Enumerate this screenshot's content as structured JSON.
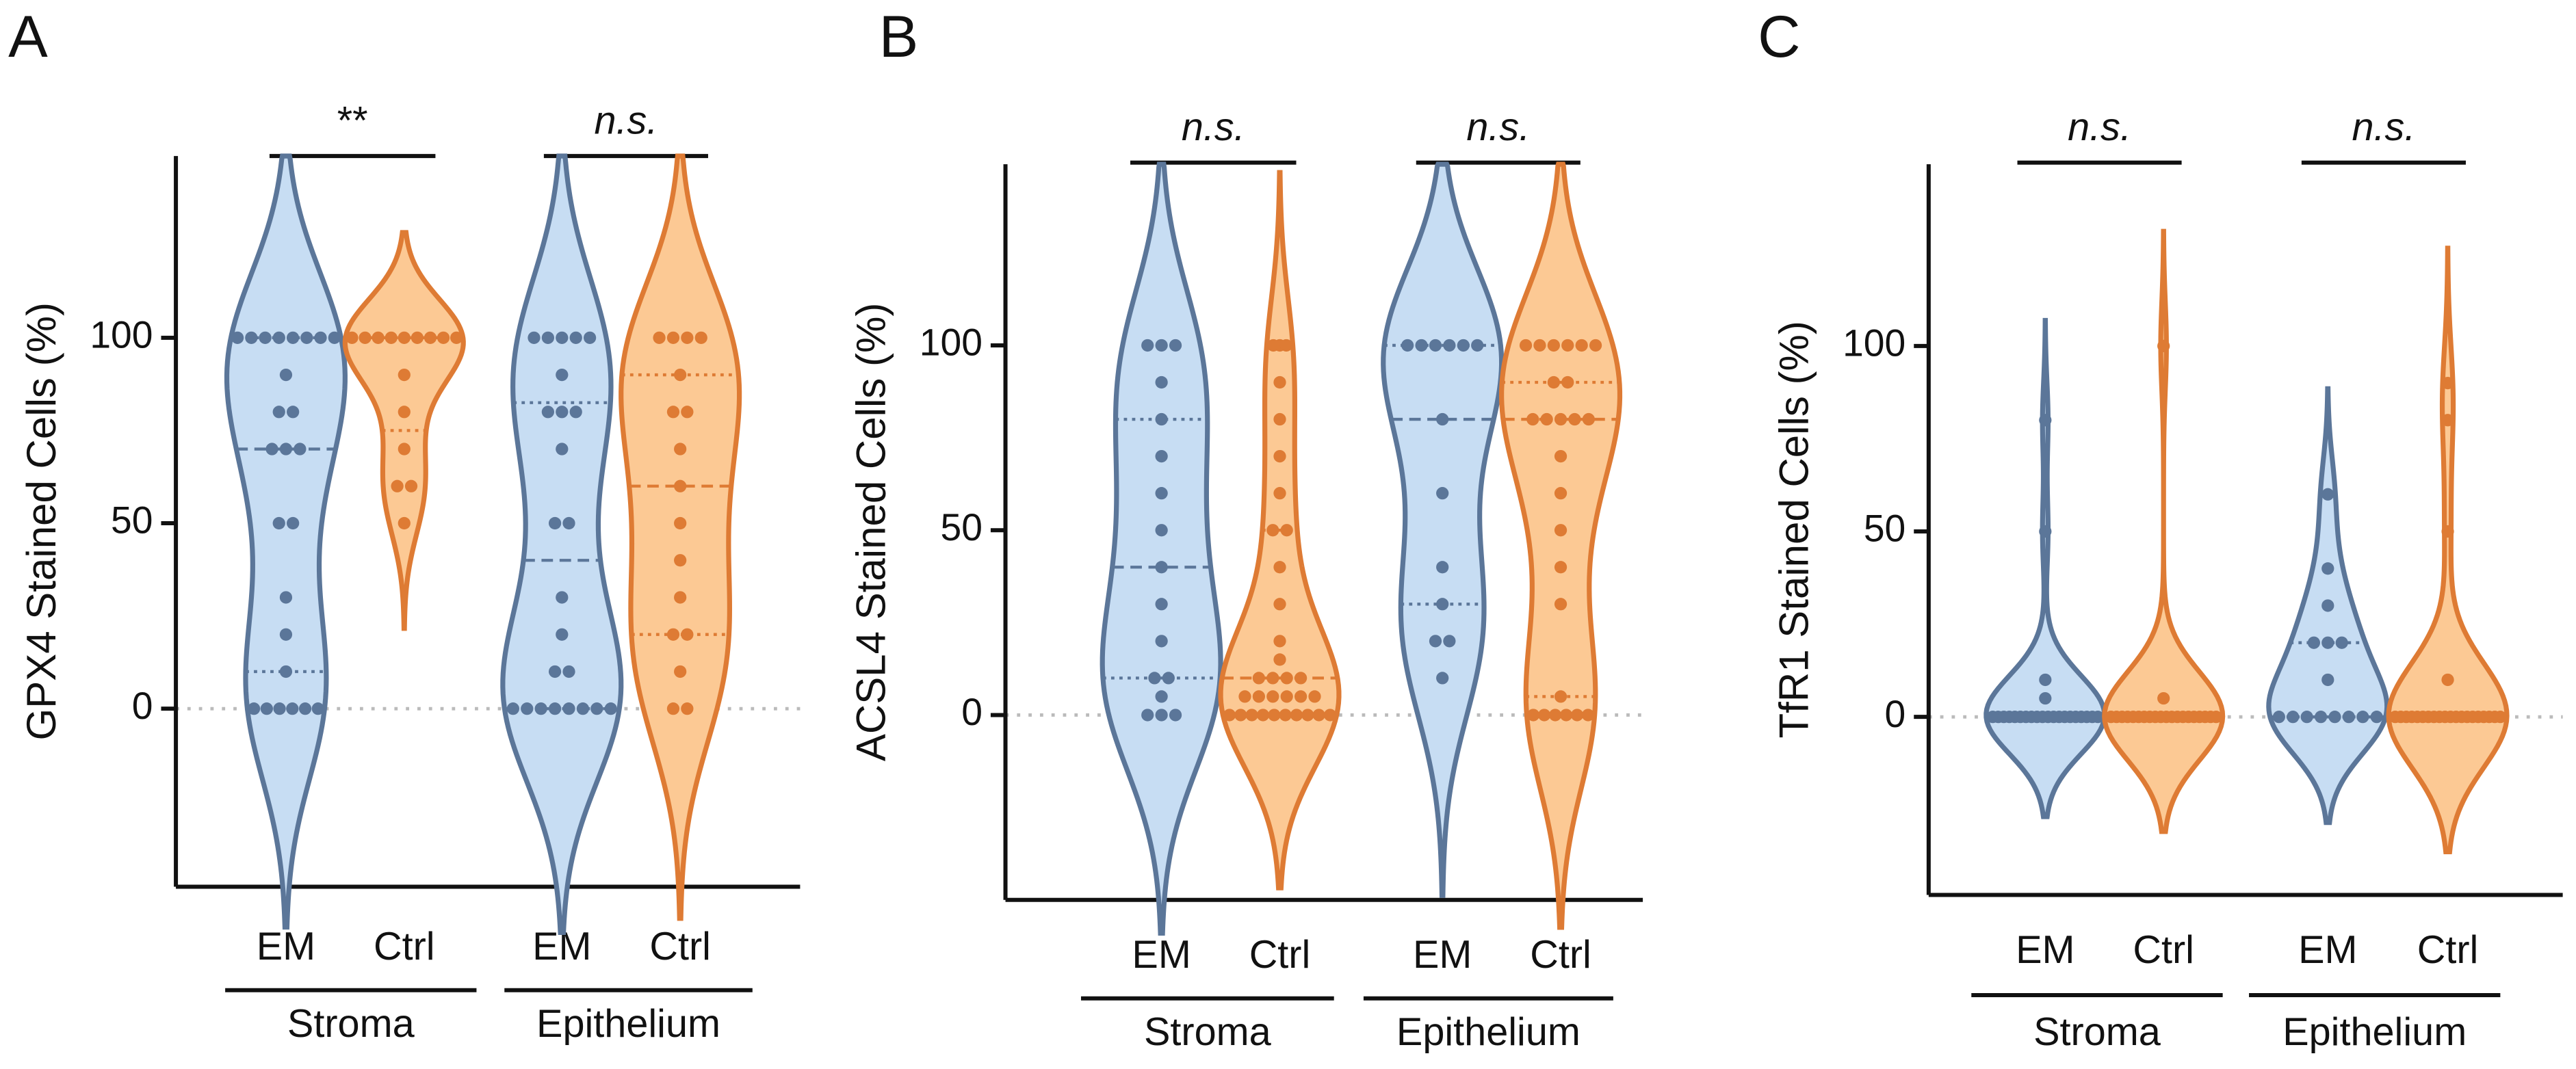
{
  "chart_data": [
    {
      "type": "violin",
      "label": "A",
      "ylabel": "GPX4 Stained Cells (%)",
      "ylim": [
        -48,
        149
      ],
      "yticks": [
        0,
        50,
        100
      ],
      "reference_line": 0,
      "categories": [
        "EM",
        "Ctrl",
        "EM",
        "Ctrl"
      ],
      "groups": [
        "Stroma",
        "Epithelium"
      ],
      "annotations": [
        "**",
        "n.s."
      ],
      "series": [
        {
          "color": "#5b7699",
          "fill": "#c7ddf3",
          "values": [
            0,
            0,
            0,
            0,
            0,
            0,
            10,
            20,
            30,
            50,
            50,
            70,
            70,
            70,
            80,
            80,
            90,
            100,
            100,
            100,
            100,
            100,
            100,
            100,
            100
          ]
        },
        {
          "color": "#de7b34",
          "fill": "#fcc994",
          "values": [
            50,
            60,
            60,
            70,
            80,
            90,
            100,
            100,
            100,
            100,
            100,
            100,
            100,
            100,
            100
          ]
        },
        {
          "color": "#5b7699",
          "fill": "#c7ddf3",
          "values": [
            0,
            0,
            0,
            0,
            0,
            0,
            0,
            0,
            10,
            10,
            20,
            30,
            50,
            50,
            70,
            80,
            80,
            80,
            90,
            100,
            100,
            100,
            100,
            100
          ]
        },
        {
          "color": "#de7b34",
          "fill": "#fcc994",
          "values": [
            0,
            0,
            10,
            20,
            20,
            30,
            40,
            50,
            60,
            70,
            80,
            80,
            90,
            100,
            100,
            100,
            100
          ]
        }
      ]
    },
    {
      "type": "violin",
      "label": "B",
      "ylabel": "ACSL4 Stained Cells (%)",
      "ylim": [
        -50,
        149
      ],
      "yticks": [
        0,
        50,
        100
      ],
      "reference_line": 0,
      "categories": [
        "EM",
        "Ctrl",
        "EM",
        "Ctrl"
      ],
      "groups": [
        "Stroma",
        "Epithelium"
      ],
      "annotations": [
        "n.s.",
        "n.s."
      ],
      "series": [
        {
          "color": "#5b7699",
          "fill": "#c7ddf3",
          "values": [
            0,
            0,
            0,
            5,
            10,
            10,
            20,
            30,
            40,
            50,
            60,
            70,
            80,
            90,
            100,
            100,
            100
          ]
        },
        {
          "color": "#de7b34",
          "fill": "#fcc994",
          "values": [
            0,
            0,
            0,
            0,
            0,
            0,
            0,
            0,
            0,
            0,
            5,
            5,
            5,
            5,
            5,
            5,
            10,
            10,
            10,
            10,
            15,
            20,
            30,
            40,
            50,
            50,
            60,
            70,
            80,
            90,
            100,
            100,
            100
          ]
        },
        {
          "color": "#5b7699",
          "fill": "#c7ddf3",
          "values": [
            10,
            20,
            20,
            30,
            40,
            60,
            80,
            100,
            100,
            100,
            100,
            100,
            100
          ]
        },
        {
          "color": "#de7b34",
          "fill": "#fcc994",
          "values": [
            0,
            0,
            0,
            0,
            0,
            0,
            5,
            30,
            40,
            50,
            60,
            70,
            80,
            80,
            80,
            80,
            80,
            90,
            90,
            100,
            100,
            100,
            100,
            100,
            100
          ]
        }
      ]
    },
    {
      "type": "violin",
      "label": "C",
      "ylabel": "TfR1 Stained Cells (%)",
      "ylim": [
        -48,
        149
      ],
      "yticks": [
        0,
        50,
        100
      ],
      "reference_line": 0,
      "categories": [
        "EM",
        "Ctrl",
        "EM",
        "Ctrl"
      ],
      "groups": [
        "Stroma",
        "Epithelium"
      ],
      "annotations": [
        "n.s.",
        "n.s."
      ],
      "series": [
        {
          "color": "#5b7699",
          "fill": "#c7ddf3",
          "values": [
            0,
            0,
            0,
            0,
            0,
            0,
            0,
            0,
            0,
            0,
            0,
            0,
            0,
            0,
            0,
            0,
            0,
            0,
            0,
            0,
            5,
            10,
            50,
            80
          ]
        },
        {
          "color": "#de7b34",
          "fill": "#fcc994",
          "values": [
            0,
            0,
            0,
            0,
            0,
            0,
            0,
            0,
            0,
            0,
            0,
            0,
            0,
            0,
            0,
            0,
            0,
            0,
            0,
            0,
            5,
            100
          ]
        },
        {
          "color": "#5b7699",
          "fill": "#c7ddf3",
          "values": [
            0,
            0,
            0,
            0,
            0,
            0,
            0,
            0,
            10,
            20,
            20,
            20,
            30,
            40,
            60
          ]
        },
        {
          "color": "#de7b34",
          "fill": "#fcc994",
          "values": [
            0,
            0,
            0,
            0,
            0,
            0,
            0,
            0,
            0,
            0,
            0,
            0,
            0,
            0,
            0,
            0,
            0,
            0,
            0,
            0,
            10,
            50,
            80,
            90
          ]
        }
      ]
    }
  ]
}
